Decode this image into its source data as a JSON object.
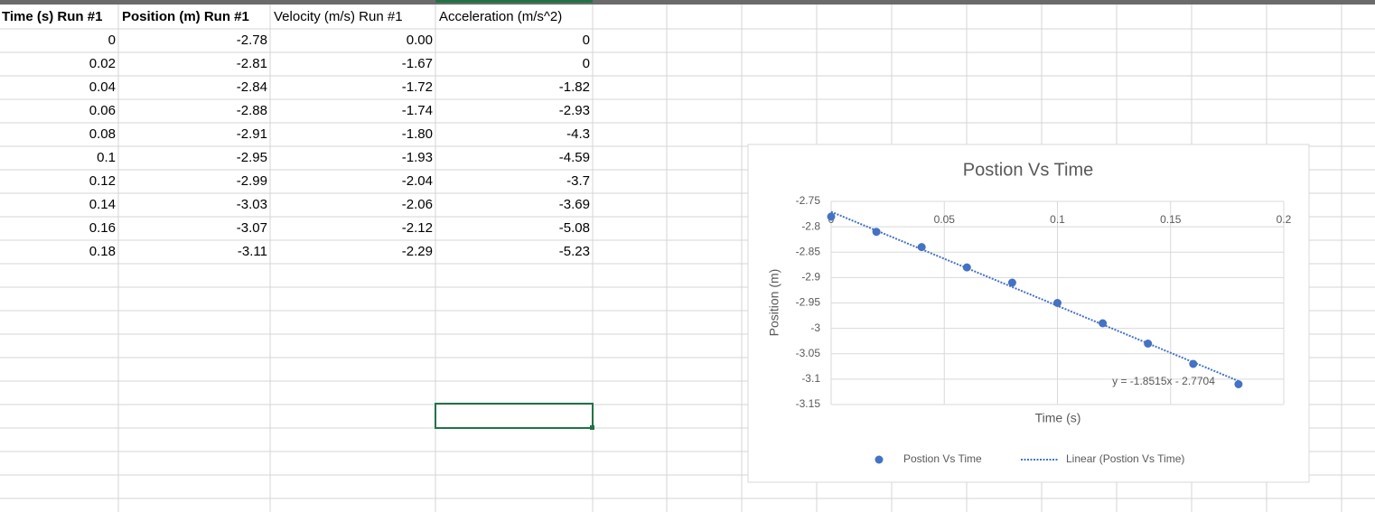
{
  "table": {
    "header": [
      "Time (s) Run #1",
      "Position (m) Run #1",
      "Velocity (m/s) Run #1",
      "Acceleration (m/s^2)"
    ],
    "rows": [
      [
        "0",
        "-2.78",
        "0.00",
        "0"
      ],
      [
        "0.02",
        "-2.81",
        "-1.67",
        "0"
      ],
      [
        "0.04",
        "-2.84",
        "-1.72",
        "-1.82"
      ],
      [
        "0.06",
        "-2.88",
        "-1.74",
        "-2.93"
      ],
      [
        "0.08",
        "-2.91",
        "-1.80",
        "-4.3"
      ],
      [
        "0.1",
        "-2.95",
        "-1.93",
        "-4.59"
      ],
      [
        "0.12",
        "-2.99",
        "-2.04",
        "-3.7"
      ],
      [
        "0.14",
        "-3.03",
        "-2.06",
        "-3.69"
      ],
      [
        "0.16",
        "-3.07",
        "-2.12",
        "-5.08"
      ],
      [
        "0.18",
        "-3.11",
        "-2.29",
        "-5.23"
      ]
    ]
  },
  "chart_data": {
    "type": "scatter",
    "title": "Postion Vs Time",
    "x_label": "Time (s)",
    "y_label": "Position (m)",
    "x": [
      0,
      0.02,
      0.04,
      0.06,
      0.08,
      0.1,
      0.12,
      0.14,
      0.16,
      0.18
    ],
    "series": [
      {
        "name": "Postion Vs Time",
        "color": "#4472c4",
        "values": [
          -2.78,
          -2.81,
          -2.84,
          -2.88,
          -2.91,
          -2.95,
          -2.99,
          -3.03,
          -3.07,
          -3.11
        ]
      }
    ],
    "trendline": {
      "name": "Linear (Postion Vs Time)",
      "label": "y = -1.8515x - 2.7704",
      "slope": -1.8515,
      "intercept": -2.7704,
      "color": "#4472c4"
    },
    "xlim": [
      0,
      0.2
    ],
    "xticks": [
      0,
      0.05,
      0.1,
      0.15,
      0.2
    ],
    "ylim": [
      -3.15,
      -2.75
    ],
    "yticks": [
      -2.75,
      -2.8,
      -2.85,
      -2.9,
      -2.95,
      -3,
      -3.05,
      -3.1,
      -3.15
    ],
    "grid": true,
    "legend": "bottom"
  }
}
